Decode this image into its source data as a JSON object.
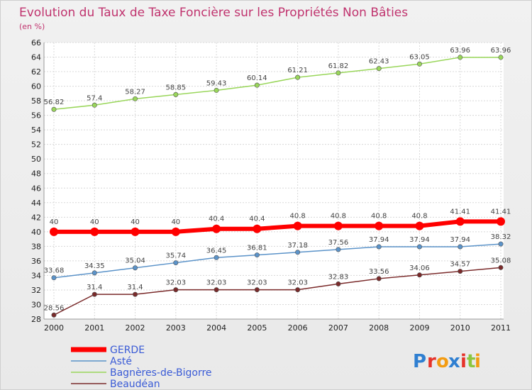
{
  "chart_data": {
    "type": "line",
    "title": "Evolution du Taux de Taxe Foncière sur les Propriétés Non Bâties",
    "subtitle": "(en %)",
    "x": [
      "2000",
      "2001",
      "2002",
      "2003",
      "2004",
      "2005",
      "2006",
      "2007",
      "2008",
      "2009",
      "2010",
      "2011"
    ],
    "ylim": [
      28,
      66
    ],
    "yticks": [
      28,
      30,
      32,
      34,
      36,
      38,
      40,
      42,
      44,
      46,
      48,
      50,
      52,
      54,
      56,
      58,
      60,
      62,
      64,
      66
    ],
    "grid": true,
    "legend_position": "bottom-left",
    "series": [
      {
        "name": "GERDE",
        "color": "#ff0000",
        "values": [
          40,
          40,
          40,
          40,
          40.4,
          40.4,
          40.8,
          40.8,
          40.8,
          40.8,
          41.41,
          41.41
        ],
        "labels": [
          "40",
          "40",
          "40",
          "40",
          "40.4",
          "40.4",
          "40.8",
          "40.8",
          "40.8",
          "40.8",
          "41.41",
          "41.41"
        ]
      },
      {
        "name": "Asté",
        "color": "#5b93c9",
        "values": [
          33.68,
          34.35,
          35.04,
          35.74,
          36.45,
          36.81,
          37.18,
          37.56,
          37.94,
          37.94,
          37.94,
          38.32
        ],
        "labels": [
          "33.68",
          "34.35",
          "35.04",
          "35.74",
          "36.45",
          "36.81",
          "37.18",
          "37.56",
          "37.94",
          "37.94",
          "37.94",
          "38.32"
        ]
      },
      {
        "name": "Bagnères-de-Bigorre",
        "color": "#99d65a",
        "values": [
          56.82,
          57.4,
          58.27,
          58.85,
          59.43,
          60.14,
          61.21,
          61.82,
          62.43,
          63.05,
          63.96,
          63.96
        ],
        "labels": [
          "56.82",
          "57.4",
          "58.27",
          "58.85",
          "59.43",
          "60.14",
          "61.21",
          "61.82",
          "62.43",
          "63.05",
          "63.96",
          "63.96"
        ]
      },
      {
        "name": "Beaudéan",
        "color": "#7a2a2a",
        "values": [
          28.56,
          31.4,
          31.4,
          32.03,
          32.03,
          32.03,
          32.03,
          32.83,
          33.56,
          34.06,
          34.57,
          35.08
        ],
        "labels": [
          "28.56",
          "31.4",
          "31.4",
          "32.03",
          "32.03",
          "32.03",
          "32.03",
          "32.83",
          "33.56",
          "34.06",
          "34.57",
          "35.08"
        ]
      }
    ]
  },
  "logo": {
    "letters": [
      "P",
      "r",
      "o",
      "x",
      "i",
      "t",
      "i"
    ],
    "colors": [
      "#2f7fd1",
      "#e6332a",
      "#f39c12",
      "#2f7fd1",
      "#e6332a",
      "#8cc63f",
      "#f39c12"
    ]
  }
}
